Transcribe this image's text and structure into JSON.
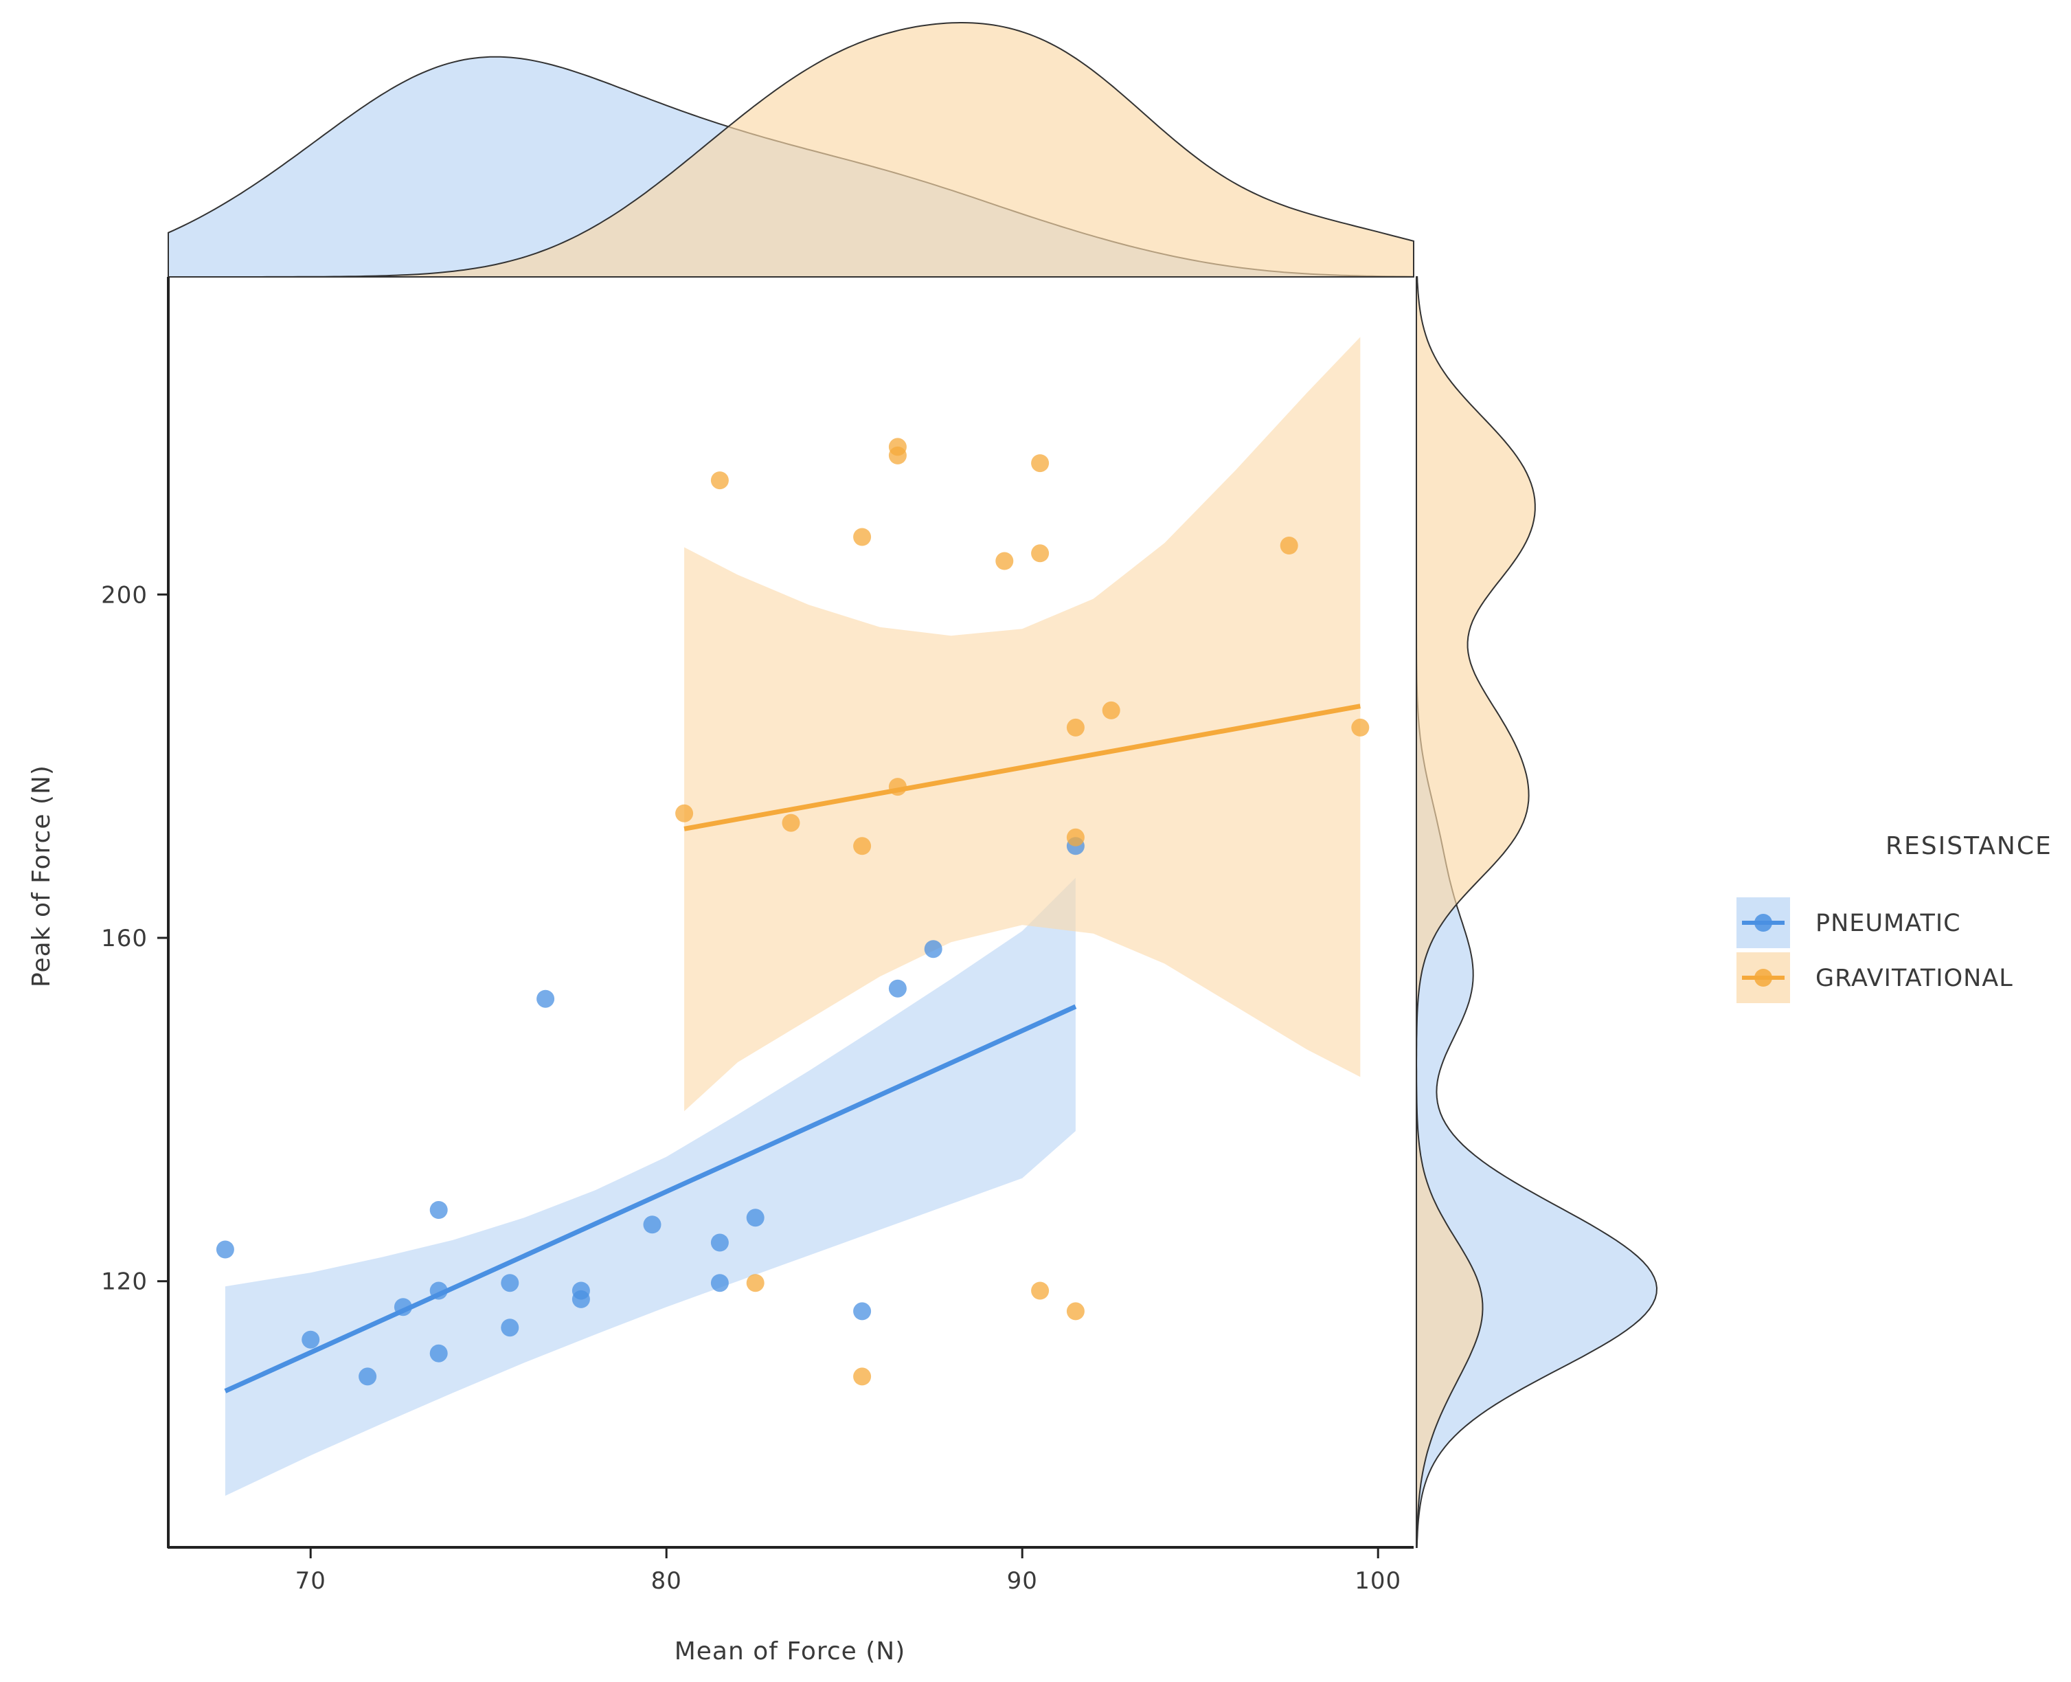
{
  "chart_data": {
    "type": "scatter",
    "title": "",
    "xlabel": "Mean of Force (N)",
    "ylabel": "Peak of Force (N)",
    "xlim": [
      66,
      101
    ],
    "ylim": [
      89,
      237
    ],
    "xticks": [
      70,
      80,
      90,
      100
    ],
    "yticks": [
      120,
      160,
      200
    ],
    "xtick_labels": [
      "70",
      "80",
      "90",
      "100"
    ],
    "ytick_labels": [
      "120",
      "160",
      "200"
    ],
    "grid": false,
    "legend": {
      "title": "RESISTANCE",
      "placement": "right",
      "entries": [
        "PNEUMATIC",
        "GRAVITATIONAL"
      ]
    },
    "series": [
      {
        "name": "PNEUMATIC",
        "color": "#4a90e2",
        "fill_color": "#b8d4f5",
        "points": [
          [
            67.6,
            123.7
          ],
          [
            70.0,
            113.2
          ],
          [
            71.6,
            108.9
          ],
          [
            72.6,
            117.0
          ],
          [
            73.6,
            128.3
          ],
          [
            73.6,
            118.9
          ],
          [
            73.6,
            111.6
          ],
          [
            75.6,
            119.8
          ],
          [
            75.6,
            114.6
          ],
          [
            76.6,
            152.9
          ],
          [
            77.6,
            118.9
          ],
          [
            77.6,
            117.9
          ],
          [
            79.6,
            126.6
          ],
          [
            81.5,
            124.5
          ],
          [
            81.5,
            119.8
          ],
          [
            82.5,
            127.4
          ],
          [
            85.5,
            116.5
          ],
          [
            86.5,
            154.1
          ],
          [
            87.5,
            158.7
          ],
          [
            91.5,
            170.7
          ]
        ],
        "fit": {
          "x": [
            67.6,
            91.5
          ],
          "y": [
            107.2,
            152.0
          ]
        },
        "ci_band": [
          {
            "x": 67.6,
            "lo": 95.0,
            "hi": 119.4
          },
          {
            "x": 70.0,
            "lo": 99.7,
            "hi": 121.0
          },
          {
            "x": 72.0,
            "lo": 103.4,
            "hi": 122.8
          },
          {
            "x": 74.0,
            "lo": 107.0,
            "hi": 124.8
          },
          {
            "x": 76.0,
            "lo": 110.5,
            "hi": 127.4
          },
          {
            "x": 78.0,
            "lo": 113.8,
            "hi": 130.6
          },
          {
            "x": 80.0,
            "lo": 117.0,
            "hi": 134.5
          },
          {
            "x": 82.0,
            "lo": 120.0,
            "hi": 139.4
          },
          {
            "x": 84.0,
            "lo": 123.0,
            "hi": 144.5
          },
          {
            "x": 86.0,
            "lo": 126.0,
            "hi": 149.8
          },
          {
            "x": 88.0,
            "lo": 129.0,
            "hi": 155.2
          },
          {
            "x": 90.0,
            "lo": 132.0,
            "hi": 160.8
          },
          {
            "x": 91.5,
            "lo": 137.5,
            "hi": 167.0
          }
        ]
      },
      {
        "name": "GRAVITATIONAL",
        "color": "#f5a93b",
        "fill_color": "#fbd9a8",
        "points": [
          [
            80.5,
            174.5
          ],
          [
            81.5,
            213.3
          ],
          [
            82.5,
            119.8
          ],
          [
            83.5,
            173.4
          ],
          [
            85.5,
            206.7
          ],
          [
            85.5,
            170.7
          ],
          [
            85.5,
            108.9
          ],
          [
            86.5,
            217.2
          ],
          [
            86.5,
            216.2
          ],
          [
            86.5,
            177.6
          ],
          [
            89.5,
            203.9
          ],
          [
            90.5,
            215.3
          ],
          [
            90.5,
            204.8
          ],
          [
            90.5,
            118.9
          ],
          [
            91.5,
            184.5
          ],
          [
            91.5,
            171.7
          ],
          [
            91.5,
            116.5
          ],
          [
            92.5,
            186.5
          ],
          [
            97.5,
            205.7
          ],
          [
            99.5,
            184.5
          ]
        ],
        "fit": {
          "x": [
            80.5,
            99.5
          ],
          "y": [
            172.7,
            187.0
          ]
        },
        "ci_band": [
          {
            "x": 80.5,
            "lo": 139.8,
            "hi": 205.5
          },
          {
            "x": 82.0,
            "lo": 145.5,
            "hi": 202.3
          },
          {
            "x": 84.0,
            "lo": 150.5,
            "hi": 198.8
          },
          {
            "x": 86.0,
            "lo": 155.5,
            "hi": 196.2
          },
          {
            "x": 88.0,
            "lo": 159.5,
            "hi": 195.2
          },
          {
            "x": 90.0,
            "lo": 161.5,
            "hi": 196.0
          },
          {
            "x": 92.0,
            "lo": 160.5,
            "hi": 199.5
          },
          {
            "x": 94.0,
            "lo": 157.0,
            "hi": 206.0
          },
          {
            "x": 96.0,
            "lo": 152.0,
            "hi": 214.5
          },
          {
            "x": 98.0,
            "lo": 147.0,
            "hi": 223.5
          },
          {
            "x": 99.5,
            "lo": 143.8,
            "hi": 230.0
          }
        ]
      }
    ]
  }
}
